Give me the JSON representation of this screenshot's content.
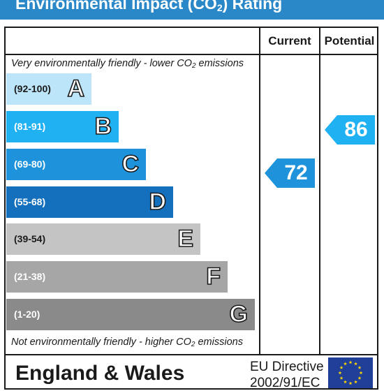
{
  "header": {
    "title_prefix": "Environmental Impact (CO",
    "title_sub": "2",
    "title_suffix": ") Rating"
  },
  "columns": {
    "current": "Current",
    "potential": "Potential"
  },
  "notes": {
    "top_prefix": "Very environmentally friendly - lower CO",
    "top_sub": "2",
    "top_suffix": " emissions",
    "bottom_prefix": "Not environmentally friendly - higher CO",
    "bottom_sub": "2",
    "bottom_suffix": " emissions"
  },
  "bands": [
    {
      "range": "(92-100)",
      "letter": "A",
      "color": "#bce5f9"
    },
    {
      "range": "(81-91)",
      "letter": "B",
      "color": "#20b1f2"
    },
    {
      "range": "(69-80)",
      "letter": "C",
      "color": "#1e93dc"
    },
    {
      "range": "(55-68)",
      "letter": "D",
      "color": "#1470bc"
    },
    {
      "range": "(39-54)",
      "letter": "E",
      "color": "#c4c4c4"
    },
    {
      "range": "(21-38)",
      "letter": "F",
      "color": "#a6a6a6"
    },
    {
      "range": "(1-20)",
      "letter": "G",
      "color": "#8a8a8a"
    }
  ],
  "current": {
    "value": "72",
    "color": "#1e93dc"
  },
  "potential": {
    "value": "86",
    "color": "#20b1f2"
  },
  "footer": {
    "region": "England & Wales",
    "directive_line1": "EU Directive",
    "directive_line2": "2002/91/EC"
  },
  "colors": {
    "title_bar": "#2a87c8",
    "eu_flag_blue": "#1f3f99",
    "eu_flag_star": "#ffd500"
  }
}
